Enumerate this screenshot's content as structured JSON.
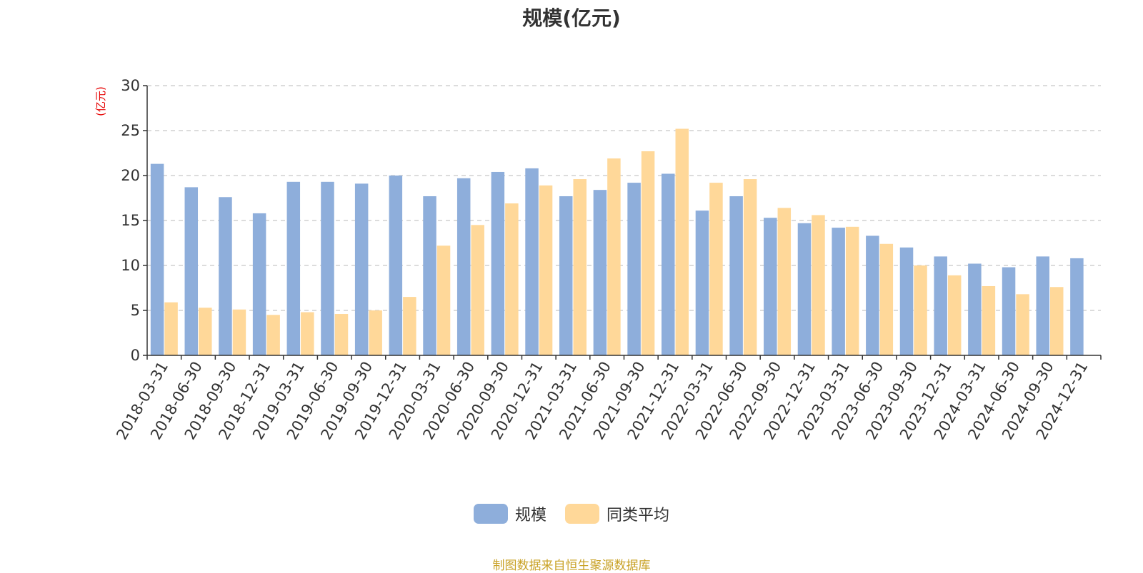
{
  "chart_data": {
    "type": "bar",
    "title": "规模(亿元)",
    "ylabel": "(亿元)",
    "xlabel": "",
    "ylim": [
      0,
      30
    ],
    "yticks": [
      0,
      5,
      10,
      15,
      20,
      25,
      30
    ],
    "grid": true,
    "legend_position": "bottom",
    "categories": [
      "2018-03-31",
      "2018-06-30",
      "2018-09-30",
      "2018-12-31",
      "2019-03-31",
      "2019-06-30",
      "2019-09-30",
      "2019-12-31",
      "2020-03-31",
      "2020-06-30",
      "2020-09-30",
      "2020-12-31",
      "2021-03-31",
      "2021-06-30",
      "2021-09-30",
      "2021-12-31",
      "2022-03-31",
      "2022-06-30",
      "2022-09-30",
      "2022-12-31",
      "2023-03-31",
      "2023-06-30",
      "2023-09-30",
      "2023-12-31",
      "2024-03-31",
      "2024-06-30",
      "2024-09-30",
      "2024-12-31"
    ],
    "series": [
      {
        "name": "规模",
        "color": "#8eaedb",
        "values": [
          21.3,
          18.7,
          17.6,
          15.8,
          19.3,
          19.3,
          19.1,
          20.0,
          17.7,
          19.7,
          20.4,
          20.8,
          17.7,
          18.4,
          19.2,
          20.2,
          16.1,
          17.7,
          15.3,
          14.7,
          14.2,
          13.3,
          12.0,
          11.0,
          10.2,
          9.8,
          11.0,
          10.8
        ]
      },
      {
        "name": "同类平均",
        "color": "#ffd899",
        "values": [
          5.9,
          5.3,
          5.1,
          4.5,
          4.8,
          4.6,
          5.0,
          6.5,
          12.2,
          14.5,
          16.9,
          18.9,
          19.6,
          21.9,
          22.7,
          25.2,
          19.2,
          19.6,
          16.4,
          15.6,
          14.3,
          12.4,
          10.0,
          8.9,
          7.7,
          6.8,
          7.6,
          null
        ]
      }
    ]
  },
  "source_text": "制图数据来自恒生聚源数据库"
}
